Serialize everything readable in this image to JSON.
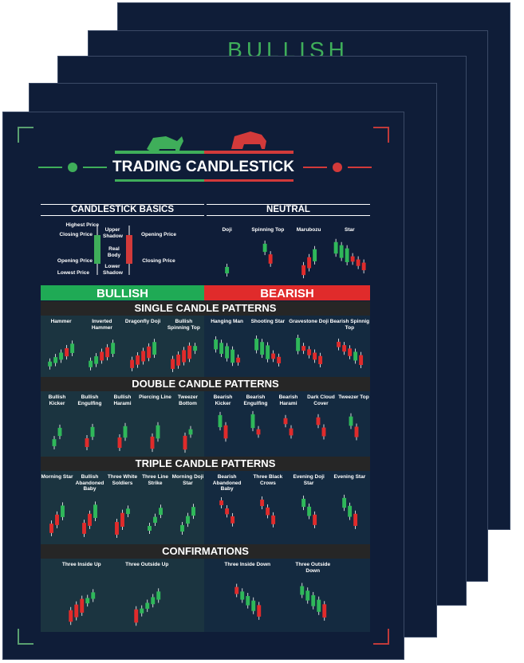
{
  "back_poster": {
    "title": "BULLISH"
  },
  "poster": {
    "title": "TRADING CANDLESTICK",
    "basics": {
      "heading": "CANDLESTICK BASICS",
      "labels": [
        "Highest Price",
        "Closing Price",
        "Opening Price",
        "Lowest Price",
        "Upper Shadow",
        "Real Body",
        "Lower Shadow",
        "Opening Price",
        "Closing Price"
      ]
    },
    "neutral": {
      "heading": "NEUTRAL",
      "items": [
        "Doji",
        "Spinning Top",
        "Marubozu",
        "Star"
      ]
    },
    "bullish": "BULLISH",
    "bearish": "BEARISH",
    "sections": [
      {
        "title": "SINGLE CANDLE PATTERNS",
        "bullish": [
          "Hammer",
          "Inverted Hammer",
          "Dragonfly Doji",
          "Bullish Spinning Top"
        ],
        "bearish": [
          "Hanging Man",
          "Shooting Star",
          "Gravestone Doji",
          "Bearish Spinnig Top"
        ]
      },
      {
        "title": "DOUBLE CANDLE PATTERNS",
        "bullish": [
          "Bullish Kicker",
          "Bullish Engulfing",
          "Bullish Harami",
          "Piercing Line",
          "Tweezer Bottom"
        ],
        "bearish": [
          "Bearish Kicker",
          "Bearish Engulfing",
          "Bearish Harami",
          "Dark Cloud Cover",
          "Tweezer Top"
        ]
      },
      {
        "title": "TRIPLE CANDLE PATTERNS",
        "bullish": [
          "Morning Star",
          "Bullish Abandoned Baby",
          "Three White Soldiers",
          "Three Line Strike",
          "Morning Doji Star"
        ],
        "bearish": [
          "Bearish Abandoned Baby",
          "Three Black Crows",
          "Evening Doji Star",
          "Evening Star"
        ]
      },
      {
        "title": "CONFIRMATIONS",
        "bullish": [
          "Three Inside Up",
          "Three Outside Up"
        ],
        "bearish": [
          "Three Inside Down",
          "Three Outside Down"
        ]
      }
    ]
  }
}
